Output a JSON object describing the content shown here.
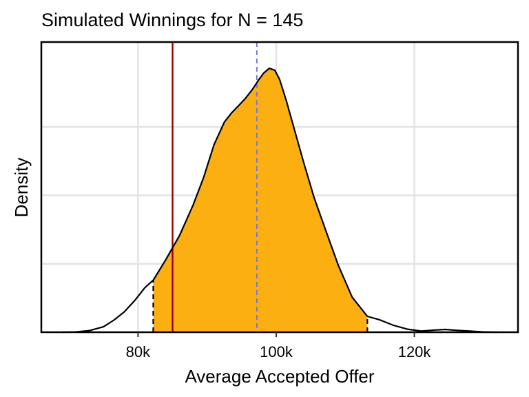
{
  "chart_data": {
    "type": "area",
    "title": "Simulated Winnings for N = 145",
    "xlabel": "Average Accepted Offer",
    "ylabel": "Density",
    "xlim": [
      66000,
      135000
    ],
    "ylim": [
      0,
      1.06
    ],
    "x_ticks": [
      80000,
      100000,
      120000
    ],
    "x_tick_labels": [
      "80k",
      "100k",
      "120k"
    ],
    "y_gridlines": [
      0.25,
      0.5,
      0.75
    ],
    "y_tick_labels_shown": false,
    "grid": true,
    "density_curve": {
      "x": [
        69000,
        71000,
        73000,
        75000,
        76500,
        78000,
        79500,
        81000,
        82200,
        84000,
        86000,
        88000,
        89500,
        91000,
        92500,
        93500,
        94500,
        95500,
        96500,
        97500,
        98200,
        99000,
        99800,
        100500,
        101500,
        102500,
        104000,
        105500,
        107000,
        109000,
        111000,
        113200,
        115000,
        117000,
        119000,
        121000,
        123000,
        124500,
        126000,
        128000,
        130000,
        132000
      ],
      "y": [
        0.0,
        0.001,
        0.006,
        0.02,
        0.044,
        0.074,
        0.115,
        0.163,
        0.19,
        0.264,
        0.353,
        0.466,
        0.566,
        0.685,
        0.768,
        0.8,
        0.826,
        0.853,
        0.885,
        0.923,
        0.947,
        0.964,
        0.957,
        0.923,
        0.843,
        0.752,
        0.618,
        0.491,
        0.384,
        0.244,
        0.128,
        0.058,
        0.045,
        0.025,
        0.011,
        0.004,
        0.008,
        0.01,
        0.007,
        0.004,
        0.001,
        0.0
      ]
    },
    "shaded_interval": {
      "from": 82200,
      "to": 113200,
      "color": "#FBAF10"
    },
    "reference_lines": [
      {
        "x": 85000,
        "style": "solid",
        "color": "#990000"
      },
      {
        "x": 97200,
        "style": "dashed",
        "color": "#7777DD"
      }
    ],
    "interval_edge_color": "#000000"
  }
}
